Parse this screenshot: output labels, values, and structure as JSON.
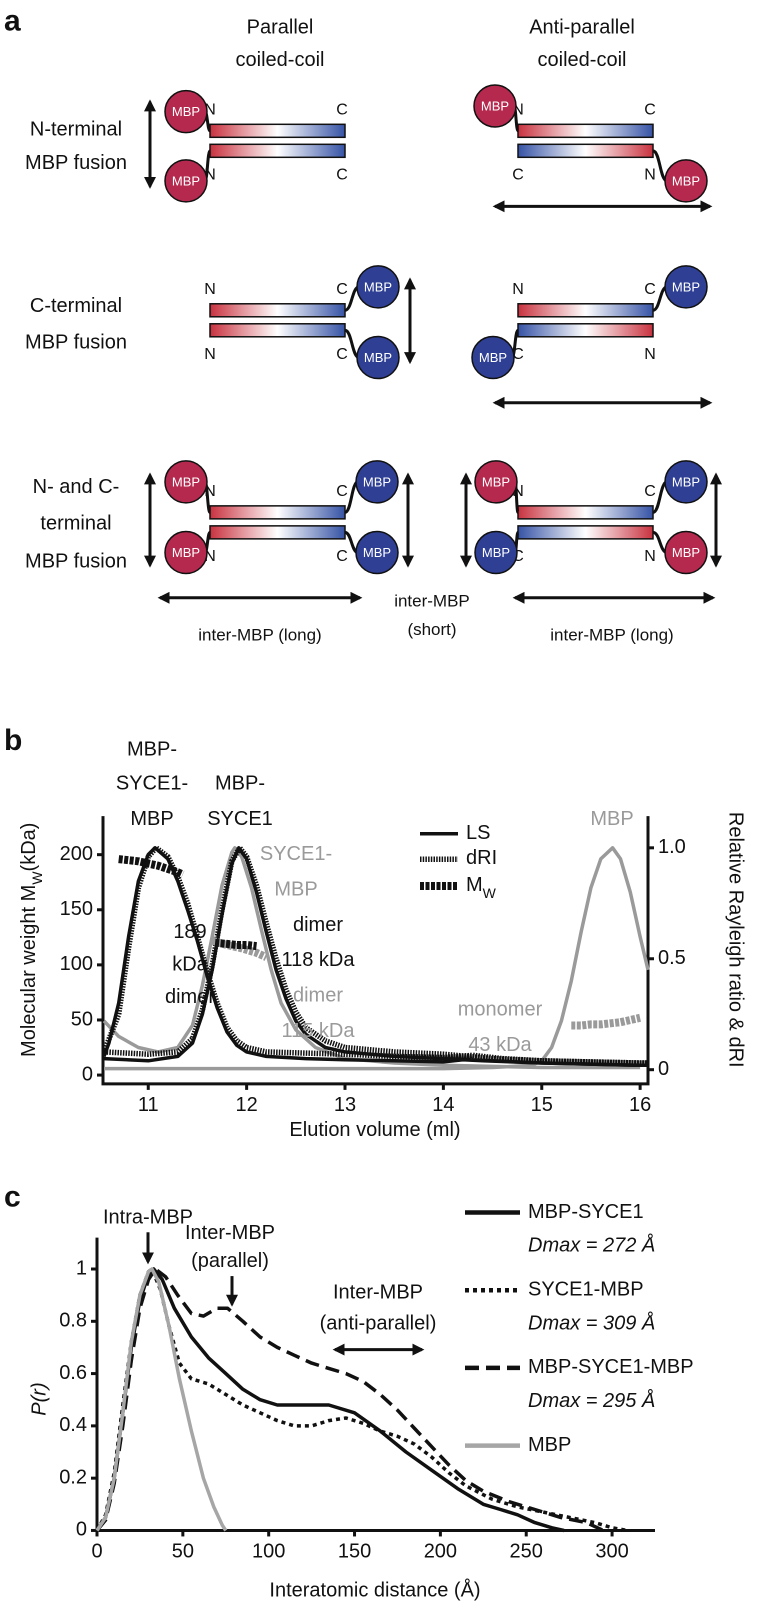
{
  "diagram": {
    "panel_label": "a",
    "columns": [
      [
        "Parallel",
        "coiled-coil"
      ],
      [
        "Anti-parallel",
        "coiled-coil"
      ]
    ],
    "rows": [
      [
        "N-terminal",
        "MBP fusion"
      ],
      [
        "C-terminal",
        "MBP fusion"
      ],
      [
        "N- and C-",
        "terminal",
        "MBP fusion"
      ]
    ],
    "units": [
      {
        "mbp": [
          "MBP",
          "MBP"
        ],
        "ends": [
          "N",
          "C",
          "N",
          "C"
        ]
      },
      {
        "mbp": [
          "MBP",
          "MBP"
        ],
        "ends": [
          "N",
          "C",
          "C",
          "N"
        ]
      },
      {
        "mbp": [
          "MBP",
          "MBP"
        ],
        "ends": [
          "N",
          "C",
          "N",
          "C"
        ]
      },
      {
        "mbp": [
          "MBP",
          "MBP"
        ],
        "ends": [
          "N",
          "C",
          "C",
          "N"
        ]
      },
      {
        "mbp": [
          "MBP",
          "MBP",
          "MBP",
          "MBP"
        ],
        "ends": [
          "N",
          "C",
          "N",
          "C"
        ]
      },
      {
        "mbp": [
          "MBP",
          "MBP",
          "MBP",
          "MBP"
        ],
        "ends": [
          "N",
          "C",
          "C",
          "N"
        ]
      }
    ],
    "distances": [
      {
        "lines": [
          "inter-MBP (long)"
        ]
      },
      {
        "lines": [
          "inter-MBP",
          "(short)"
        ]
      },
      {
        "lines": [
          "inter-MBP (long)"
        ]
      }
    ]
  },
  "chart_data": [
    {
      "type": "line",
      "panel_label": "b",
      "xlabel": "Elution volume (ml)",
      "ylabel": [
        "Molecular weight M",
        "W",
        "(kDa)"
      ],
      "y2label": "Relative Rayleigh ratio & dRI",
      "xlim": [
        10.54,
        16.08
      ],
      "xticks": [
        11,
        12,
        13,
        14,
        15,
        16
      ],
      "ylim": [
        -8,
        235
      ],
      "yticks": [
        0,
        50,
        100,
        150,
        200
      ],
      "y2lim": [
        -0.064,
        1.143
      ],
      "y2ticks": [
        0,
        0.5,
        {
          "value": 1,
          "label": "1.0"
        }
      ],
      "legend": [
        {
          "text": "LS",
          "line_style": "solid"
        },
        {
          "text": "dRI",
          "line_style": "dotted"
        },
        {
          "text": "M",
          "sub": "W",
          "line_style": "diamond"
        }
      ],
      "annotations": [
        {
          "lines": [
            "MBP-",
            "SYCE1-",
            "MBP"
          ],
          "color": "#111111"
        },
        {
          "lines": [
            "MBP-",
            "SYCE1"
          ],
          "color": "#111111"
        },
        {
          "lines": [
            "SYCE1-",
            "MBP"
          ],
          "color": "#9a9a9a"
        },
        {
          "lines": [
            "MBP"
          ],
          "color": "#9a9a9a"
        },
        {
          "lines": [
            "189",
            "kDa",
            "dimer"
          ],
          "color": "#111111"
        },
        {
          "lines": [
            "dimer",
            "118 kDa"
          ],
          "color": "#111111"
        },
        {
          "lines": [
            "dimer",
            "115 kDa"
          ],
          "color": "#9a9a9a"
        },
        {
          "lines": [
            "monomer",
            "43 kDa"
          ],
          "color": "#9a9a9a"
        }
      ],
      "series": [
        {
          "color": "#9a9a9a",
          "line_style": "solid",
          "axis": "y2",
          "x": [
            10.55,
            10.7,
            10.9,
            11.1,
            11.3,
            11.45,
            11.55,
            11.65,
            11.75,
            11.85,
            11.88,
            11.95,
            12.05,
            12.15,
            12.25,
            12.35,
            12.5,
            12.7,
            13.0,
            13.5,
            14,
            15,
            16
          ],
          "values": [
            0.22,
            0.15,
            0.1,
            0.08,
            0.1,
            0.2,
            0.38,
            0.6,
            0.83,
            0.98,
            1.0,
            0.96,
            0.82,
            0.63,
            0.45,
            0.3,
            0.18,
            0.1,
            0.05,
            0.03,
            0.02,
            0.01,
            0.01
          ]
        },
        {
          "color": "#9a9a9a",
          "line_style": "solid",
          "axis": "y2",
          "x": [
            10.55,
            12,
            13,
            14,
            14.5,
            14.9,
            15.0,
            15.1,
            15.2,
            15.3,
            15.4,
            15.5,
            15.6,
            15.72,
            15.8,
            15.9,
            16.0,
            16.08
          ],
          "values": [
            0.005,
            0.005,
            0.005,
            0.005,
            0.01,
            0.02,
            0.04,
            0.1,
            0.22,
            0.4,
            0.62,
            0.82,
            0.95,
            1.0,
            0.95,
            0.8,
            0.6,
            0.45
          ]
        },
        {
          "color": "#111111",
          "line_style": "solid",
          "axis": "y2",
          "x": [
            10.55,
            10.6,
            10.7,
            10.8,
            10.9,
            11.0,
            11.07,
            11.2,
            11.3,
            11.4,
            11.5,
            11.6,
            11.7,
            11.8,
            11.9,
            12.0,
            12.2,
            12.6,
            13.0,
            13.5,
            14.0,
            14.2,
            14.4,
            15.0,
            15.5,
            16.0,
            16.08
          ],
          "values": [
            0.06,
            0.12,
            0.3,
            0.6,
            0.85,
            0.97,
            1.0,
            0.95,
            0.85,
            0.72,
            0.58,
            0.42,
            0.28,
            0.17,
            0.11,
            0.08,
            0.06,
            0.05,
            0.045,
            0.04,
            0.035,
            0.045,
            0.04,
            0.03,
            0.025,
            0.02,
            0.02
          ]
        },
        {
          "color": "#111111",
          "line_style": "dotted",
          "axis": "y2",
          "x": [
            10.55,
            10.7,
            10.8,
            10.9,
            11.0,
            11.08,
            11.2,
            11.3,
            11.4,
            11.5,
            11.6,
            11.7,
            11.8,
            11.9,
            12.0,
            12.2,
            12.6,
            13.0,
            13.5,
            14.0,
            14.3,
            14.6,
            15.0,
            16.0,
            16.08
          ],
          "values": [
            0.08,
            0.25,
            0.55,
            0.82,
            0.96,
            1.0,
            0.96,
            0.87,
            0.75,
            0.6,
            0.44,
            0.3,
            0.19,
            0.13,
            0.1,
            0.08,
            0.075,
            0.07,
            0.06,
            0.055,
            0.065,
            0.05,
            0.04,
            0.03,
            0.03
          ]
        },
        {
          "color": "#111111",
          "line_style": "solid",
          "axis": "y2",
          "x": [
            10.55,
            11.0,
            11.3,
            11.45,
            11.55,
            11.65,
            11.75,
            11.85,
            11.92,
            12.0,
            12.1,
            12.2,
            12.3,
            12.4,
            12.5,
            12.6,
            12.8,
            13.0,
            13.5,
            14.0,
            14.5,
            15.0,
            16.0,
            16.08
          ],
          "values": [
            0.05,
            0.04,
            0.06,
            0.12,
            0.25,
            0.45,
            0.7,
            0.93,
            1.0,
            0.95,
            0.8,
            0.62,
            0.45,
            0.32,
            0.22,
            0.16,
            0.1,
            0.08,
            0.06,
            0.05,
            0.04,
            0.03,
            0.02,
            0.02
          ]
        },
        {
          "color": "#111111",
          "line_style": "dotted",
          "axis": "y2",
          "x": [
            10.55,
            11.0,
            11.3,
            11.45,
            11.55,
            11.65,
            11.75,
            11.85,
            11.93,
            12.0,
            12.1,
            12.2,
            12.3,
            12.4,
            12.5,
            12.6,
            12.8,
            13.0,
            13.5,
            14.0,
            14.5,
            15.0,
            16.0,
            16.08
          ],
          "values": [
            0.08,
            0.07,
            0.08,
            0.14,
            0.27,
            0.47,
            0.72,
            0.94,
            1.0,
            0.96,
            0.83,
            0.66,
            0.5,
            0.36,
            0.26,
            0.19,
            0.13,
            0.1,
            0.08,
            0.07,
            0.05,
            0.04,
            0.03,
            0.03
          ]
        },
        {
          "color": "#9a9a9a",
          "line_style": "diamond",
          "x": [
            11.65,
            11.8,
            11.95,
            12.1,
            12.2
          ],
          "values": [
            122,
            118,
            115,
            111,
            107
          ]
        },
        {
          "color": "#9a9a9a",
          "line_style": "diamond",
          "x": [
            15.3,
            15.4,
            15.5,
            15.6,
            15.7,
            15.8,
            15.9,
            16.0
          ],
          "values": [
            45,
            45,
            46,
            46,
            47,
            48,
            50,
            52
          ]
        },
        {
          "color": "#111111",
          "line_style": "diamond",
          "x": [
            10.7,
            10.8,
            10.9,
            11.0,
            11.1,
            11.2,
            11.3,
            11.35
          ],
          "values": [
            196,
            195,
            194,
            192,
            190,
            187,
            184,
            182
          ]
        },
        {
          "color": "#111111",
          "line_style": "diamond",
          "x": [
            11.68,
            11.8,
            11.9,
            12.0,
            12.1
          ],
          "values": [
            120,
            119,
            118,
            118,
            117
          ]
        }
      ]
    },
    {
      "type": "line",
      "panel_label": "c",
      "xlabel": "Interatomic distance (Å)",
      "ylabel": "P(r)",
      "xlim": [
        0,
        325
      ],
      "xticks": [
        0,
        50,
        100,
        150,
        200,
        250,
        300
      ],
      "ylim": [
        0,
        1.12
      ],
      "yticks": [
        0,
        0.2,
        0.4,
        0.6,
        0.8,
        1
      ],
      "legend": "upper right",
      "annotations": [
        {
          "lines": [
            "Intra-MBP"
          ]
        },
        {
          "lines": [
            "Inter-MBP",
            "(parallel)"
          ]
        },
        {
          "lines": [
            "Inter-MBP",
            "(anti-parallel)"
          ]
        }
      ],
      "series": [
        {
          "name": "MBP-SYCE1",
          "dmax": "Dmax = 272 Å",
          "color": "#111111",
          "line_style": "solid",
          "x": [
            0,
            5,
            10,
            15,
            20,
            25,
            30,
            33,
            38,
            45,
            55,
            65,
            75,
            85,
            95,
            105,
            120,
            135,
            150,
            165,
            180,
            195,
            210,
            225,
            235,
            245,
            255,
            265,
            272
          ],
          "values": [
            0,
            0.05,
            0.2,
            0.45,
            0.7,
            0.88,
            0.98,
            1.0,
            0.96,
            0.85,
            0.74,
            0.66,
            0.6,
            0.54,
            0.5,
            0.48,
            0.48,
            0.48,
            0.45,
            0.38,
            0.3,
            0.23,
            0.16,
            0.1,
            0.08,
            0.06,
            0.03,
            0.01,
            0
          ]
        },
        {
          "name": "SYCE1-MBP",
          "dmax": "Dmax = 309 Å",
          "color": "#111111",
          "line_style": "dotted",
          "x": [
            0,
            5,
            10,
            15,
            20,
            25,
            30,
            32,
            37,
            42,
            48,
            55,
            65,
            75,
            85,
            95,
            105,
            115,
            125,
            135,
            145,
            155,
            165,
            175,
            185,
            195,
            205,
            215,
            230,
            245,
            260,
            275,
            290,
            300,
            309
          ],
          "values": [
            0,
            0.06,
            0.22,
            0.48,
            0.72,
            0.9,
            0.99,
            1.0,
            0.92,
            0.78,
            0.64,
            0.58,
            0.56,
            0.52,
            0.48,
            0.45,
            0.42,
            0.4,
            0.4,
            0.42,
            0.43,
            0.41,
            0.38,
            0.36,
            0.33,
            0.28,
            0.22,
            0.17,
            0.12,
            0.09,
            0.07,
            0.05,
            0.03,
            0.01,
            0
          ]
        },
        {
          "name": "MBP-SYCE1-MBP",
          "dmax": "Dmax = 295 Å",
          "color": "#111111",
          "line_style": "dashed",
          "x": [
            0,
            5,
            10,
            15,
            20,
            25,
            30,
            34,
            40,
            47,
            55,
            62,
            70,
            76,
            85,
            95,
            105,
            115,
            125,
            135,
            145,
            155,
            165,
            175,
            185,
            195,
            205,
            215,
            225,
            240,
            255,
            270,
            285,
            295
          ],
          "values": [
            0,
            0.04,
            0.18,
            0.4,
            0.65,
            0.85,
            0.96,
            1.0,
            0.97,
            0.9,
            0.83,
            0.82,
            0.85,
            0.85,
            0.8,
            0.74,
            0.7,
            0.67,
            0.64,
            0.62,
            0.6,
            0.57,
            0.52,
            0.46,
            0.39,
            0.32,
            0.25,
            0.19,
            0.15,
            0.11,
            0.08,
            0.05,
            0.03,
            0
          ]
        },
        {
          "name": "MBP",
          "color": "#a6a6a6",
          "line_style": "solid",
          "x": [
            0,
            5,
            10,
            15,
            20,
            25,
            30,
            32,
            36,
            42,
            48,
            55,
            62,
            68,
            73,
            75
          ],
          "values": [
            0,
            0.05,
            0.2,
            0.45,
            0.72,
            0.9,
            0.99,
            1.0,
            0.95,
            0.78,
            0.58,
            0.38,
            0.2,
            0.09,
            0.02,
            0
          ]
        }
      ]
    }
  ]
}
